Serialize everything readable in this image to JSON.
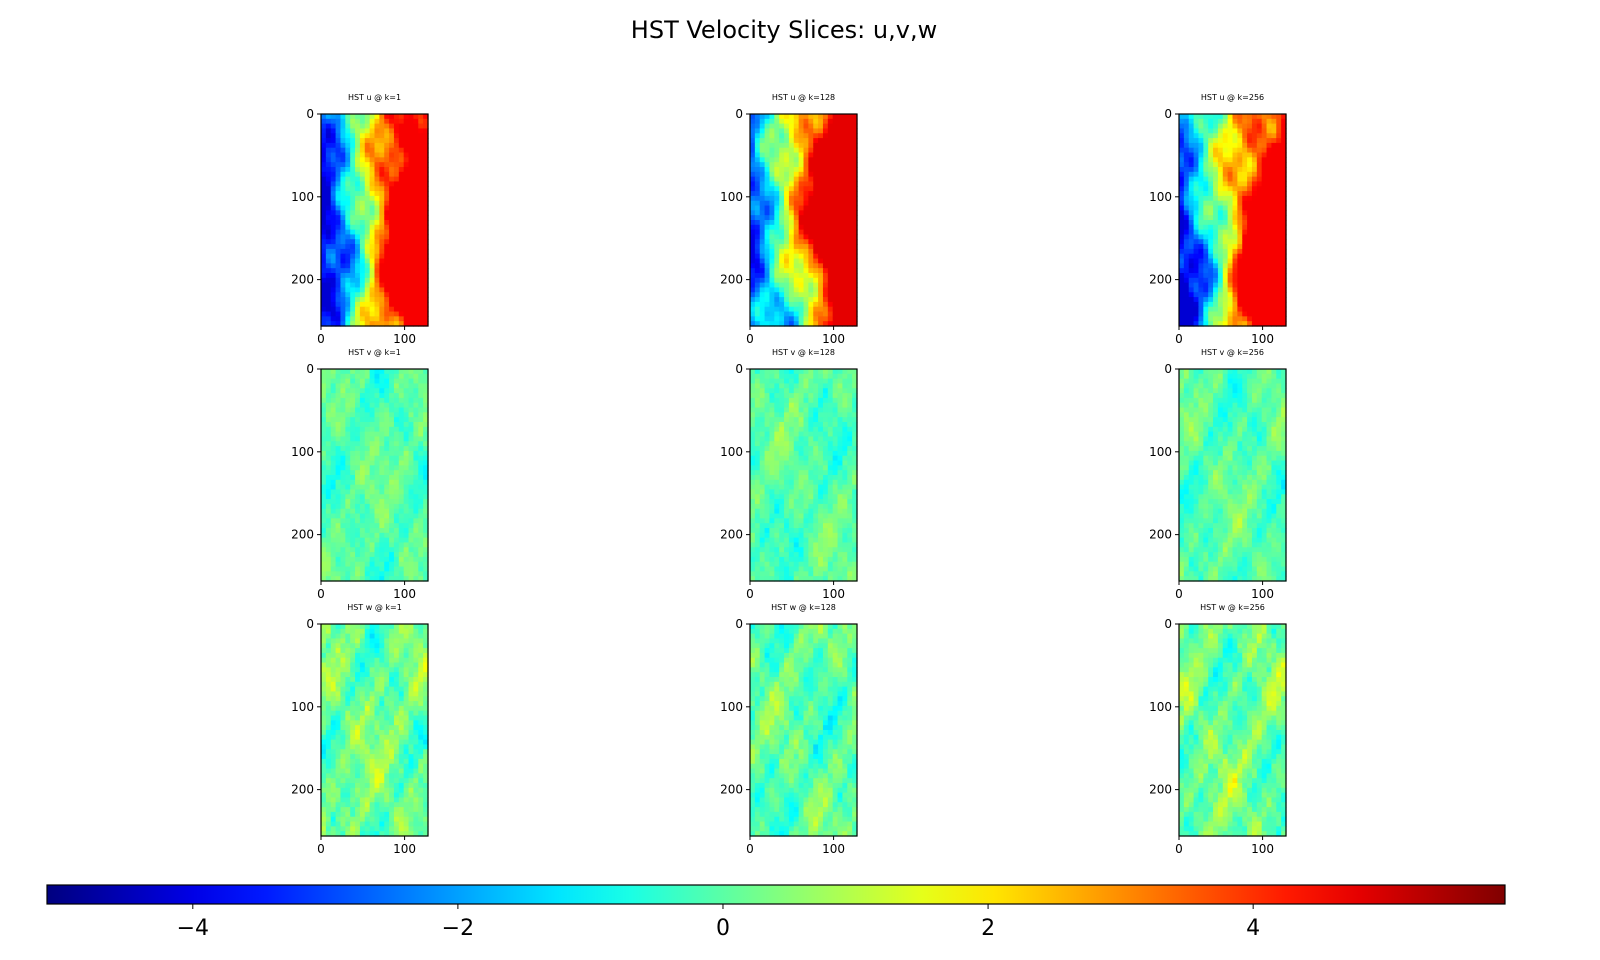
{
  "figure": {
    "title": "HST Velocity Slices: u,v,w"
  },
  "chart_data": {
    "type": "heatmap",
    "title": "HST Velocity Slices: u,v,w",
    "colormap": "jet",
    "vmin": -5.1,
    "vmax": 5.9,
    "x_range": [
      0,
      128
    ],
    "y_range": [
      0,
      256
    ],
    "y_inverted": true,
    "x_ticks": [
      "0",
      "100"
    ],
    "y_ticks": [
      "0",
      "100",
      "200"
    ],
    "colorbar": {
      "orientation": "horizontal",
      "ticks": [
        -4,
        -2,
        0,
        2,
        4
      ],
      "tick_labels": [
        "−4",
        "−2",
        "0",
        "2",
        "4"
      ]
    },
    "panels": [
      {
        "component": "u",
        "slice_k": 1,
        "title": "HST u @ k=1",
        "field_range": [
          -4.2,
          4.6
        ]
      },
      {
        "component": "u",
        "slice_k": 128,
        "title": "HST u @ k=128",
        "field_range": [
          -4.0,
          4.8
        ]
      },
      {
        "component": "u",
        "slice_k": 256,
        "title": "HST u @ k=256",
        "field_range": [
          -4.2,
          4.6
        ]
      },
      {
        "component": "v",
        "slice_k": 1,
        "title": "HST v @ k=1",
        "field_range": [
          -1.9,
          1.8
        ]
      },
      {
        "component": "v",
        "slice_k": 128,
        "title": "HST v @ k=128",
        "field_range": [
          -1.9,
          1.8
        ]
      },
      {
        "component": "v",
        "slice_k": 256,
        "title": "HST v @ k=256",
        "field_range": [
          -1.9,
          1.8
        ]
      },
      {
        "component": "w",
        "slice_k": 1,
        "title": "HST w @ k=1",
        "field_range": [
          -2.2,
          2.6
        ]
      },
      {
        "component": "w",
        "slice_k": 128,
        "title": "HST w @ k=128",
        "field_range": [
          -2.2,
          2.2
        ]
      },
      {
        "component": "w",
        "slice_k": 256,
        "title": "HST w @ k=256",
        "field_range": [
          -2.2,
          2.6
        ]
      }
    ]
  }
}
